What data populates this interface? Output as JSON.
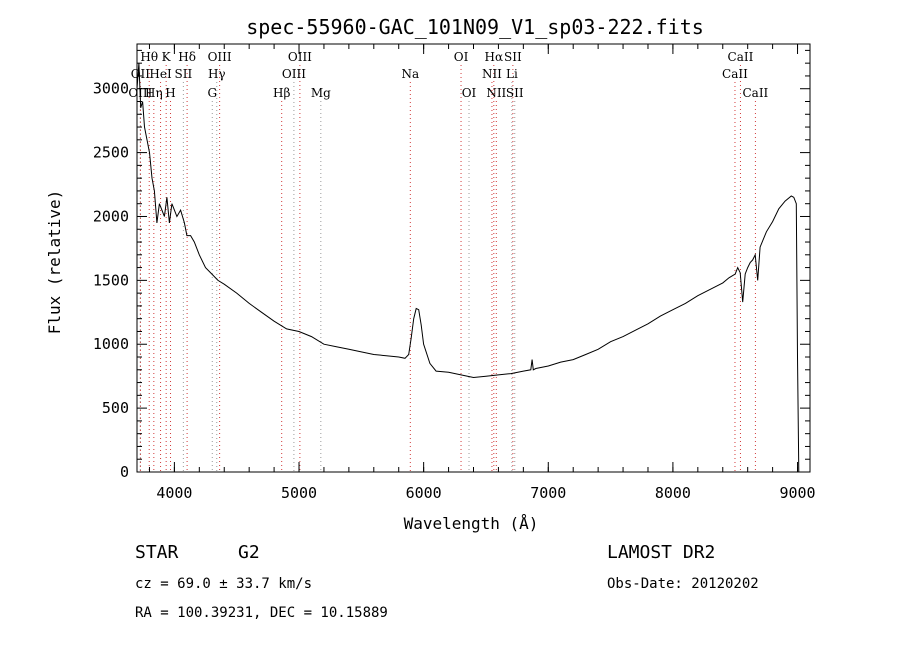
{
  "chart_data": {
    "type": "line",
    "title": "spec-55960-GAC_101N09_V1_sp03-222.fits",
    "xlabel": "Wavelength (Å)",
    "ylabel": "Flux (relative)",
    "xlim": [
      3700,
      9100
    ],
    "ylim": [
      0,
      3350
    ],
    "x_ticks": [
      4000,
      5000,
      6000,
      7000,
      8000,
      9000
    ],
    "y_ticks": [
      0,
      500,
      1000,
      1500,
      2000,
      2500,
      3000
    ],
    "grid": false,
    "series": [
      {
        "x": [
          3700,
          3715,
          3730,
          3745,
          3760,
          3780,
          3800,
          3820,
          3840,
          3860,
          3880,
          3900,
          3920,
          3940,
          3960,
          3980,
          4000,
          4020,
          4050,
          4080,
          4100,
          4130,
          4160,
          4200,
          4250,
          4300,
          4350,
          4400,
          4500,
          4600,
          4700,
          4800,
          4900,
          5000,
          5100,
          5200,
          5300,
          5400,
          5500,
          5600,
          5700,
          5800,
          5850,
          5880,
          5900,
          5920,
          5940,
          5960,
          5980,
          6000,
          6050,
          6100,
          6200,
          6300,
          6400,
          6500,
          6600,
          6700,
          6800,
          6860,
          6870,
          6880,
          6900,
          7000,
          7100,
          7200,
          7300,
          7400,
          7500,
          7600,
          7700,
          7800,
          7900,
          8000,
          8100,
          8200,
          8300,
          8400,
          8450,
          8500,
          8520,
          8540,
          8560,
          8580,
          8600,
          8620,
          8640,
          8660,
          8680,
          8700,
          8750,
          8800,
          8850,
          8900,
          8950,
          8970,
          8990,
          9000,
          9010
        ],
        "y": [
          3000,
          3200,
          2850,
          2900,
          2700,
          2600,
          2500,
          2300,
          2200,
          1950,
          2100,
          2050,
          2000,
          2150,
          1950,
          2100,
          2050,
          2000,
          2050,
          1950,
          1850,
          1850,
          1800,
          1700,
          1600,
          1550,
          1500,
          1470,
          1400,
          1320,
          1250,
          1180,
          1120,
          1100,
          1060,
          1000,
          980,
          960,
          940,
          920,
          910,
          900,
          890,
          920,
          1050,
          1200,
          1280,
          1270,
          1150,
          1000,
          850,
          790,
          780,
          760,
          740,
          750,
          760,
          770,
          790,
          800,
          880,
          800,
          810,
          830,
          860,
          880,
          920,
          960,
          1020,
          1060,
          1110,
          1160,
          1220,
          1270,
          1320,
          1380,
          1430,
          1480,
          1520,
          1550,
          1600,
          1560,
          1330,
          1550,
          1600,
          1640,
          1660,
          1700,
          1500,
          1760,
          1880,
          1960,
          2060,
          2120,
          2160,
          2150,
          2100,
          900,
          0
        ]
      }
    ],
    "line_markers": [
      {
        "name": "Hθ",
        "x": 3798,
        "row": 0
      },
      {
        "name": "K",
        "x": 3934,
        "row": 0
      },
      {
        "name": "Hδ",
        "x": 4102,
        "row": 0
      },
      {
        "name": "OIII",
        "x": 4363,
        "row": 0
      },
      {
        "name": "OIII",
        "x": 5007,
        "row": 0
      },
      {
        "name": "OI",
        "x": 6300,
        "row": 0
      },
      {
        "name": "Hα",
        "x": 6563,
        "row": 0
      },
      {
        "name": "SII",
        "x": 6716,
        "row": 0
      },
      {
        "name": "CaII",
        "x": 8542,
        "row": 0
      },
      {
        "name": "OII",
        "x": 3727,
        "row": 1
      },
      {
        "name": "HeI",
        "x": 3889,
        "row": 1
      },
      {
        "name": "SII",
        "x": 4072,
        "row": 1
      },
      {
        "name": "Hγ",
        "x": 4340,
        "row": 1
      },
      {
        "name": "OIII",
        "x": 4959,
        "row": 1
      },
      {
        "name": "Na",
        "x": 5893,
        "row": 1
      },
      {
        "name": "NII",
        "x": 6548,
        "row": 1
      },
      {
        "name": "Li",
        "x": 6708,
        "row": 1
      },
      {
        "name": "CaII",
        "x": 8498,
        "row": 1
      },
      {
        "name": "OIII",
        "x": 3727,
        "row": 2
      },
      {
        "name": "Hη",
        "x": 3835,
        "row": 2
      },
      {
        "name": "H",
        "x": 3969,
        "row": 2
      },
      {
        "name": "G",
        "x": 4304,
        "row": 2
      },
      {
        "name": "Hβ",
        "x": 4861,
        "row": 2
      },
      {
        "name": "Mg",
        "x": 5175,
        "row": 2
      },
      {
        "name": "OI",
        "x": 6364,
        "row": 2
      },
      {
        "name": "NII",
        "x": 6583,
        "row": 2
      },
      {
        "name": "SII",
        "x": 6731,
        "row": 2
      },
      {
        "name": "CaII",
        "x": 8662,
        "row": 2
      }
    ]
  },
  "info": {
    "object_class": "STAR",
    "subclass": "G2",
    "survey": "LAMOST DR2",
    "cz": "cz = 69.0 ± 33.7 km/s",
    "obs_date": "Obs-Date: 20120202",
    "coords": "RA = 100.39231, DEC =  10.15889"
  },
  "colors": {
    "marker_line": "#d23a3a",
    "marker_line_alt": "#9a9a9a",
    "spectrum": "#000000",
    "axes": "#000000"
  }
}
